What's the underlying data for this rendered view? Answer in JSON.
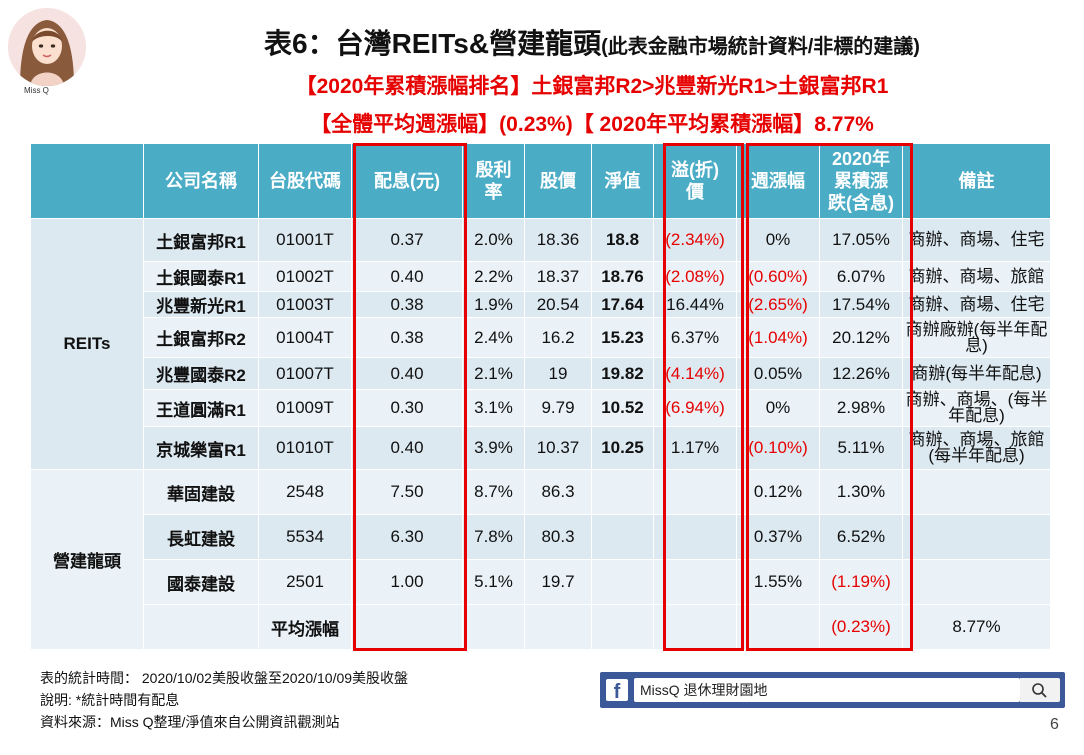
{
  "avatar_caption": "Miss Q",
  "title": {
    "main": "表6：台灣REITs&營建龍頭",
    "note": "(此表金融市場統計資料/非標的建議)"
  },
  "subtitle1": "【2020年累積漲幅排名】土銀富邦R2>兆豐新光R1>土銀富邦R1",
  "subtitle2": "【全體平均週漲幅】(0.23%)【 2020年平均累積漲幅】8.77%",
  "table": {
    "headers": [
      "",
      "公司名稱",
      "台股代碼",
      "配息(元)",
      "殷利率",
      "股價",
      "淨值",
      "溢(折)價",
      "週漲幅",
      "2020年累積漲跌(含息)",
      "備註"
    ],
    "header_lines": {
      "yield": [
        "殷利",
        "率"
      ],
      "premium": [
        "溢(折)",
        "價"
      ],
      "ytd": [
        "2020年",
        "累積漲",
        "跌(含息)"
      ]
    },
    "groups": {
      "reits": "REITs",
      "construction": "營建龍頭"
    },
    "rows": [
      {
        "name": "土銀富邦R1",
        "code": "01001T",
        "div": "0.37",
        "yield": "2.0%",
        "price": "18.36",
        "nav": "18.8",
        "prem": "(2.34%)",
        "prem_red": true,
        "week": "0%",
        "week_red": false,
        "ytd": "17.05%",
        "ytd_red": false,
        "note": "商辦、商場、住宅"
      },
      {
        "name": "土銀國泰R1",
        "code": "01002T",
        "div": "0.40",
        "yield": "2.2%",
        "price": "18.37",
        "nav": "18.76",
        "prem": "(2.08%)",
        "prem_red": true,
        "week": "(0.60%)",
        "week_red": true,
        "ytd": "6.07%",
        "ytd_red": false,
        "note": "商辦、商場、旅館"
      },
      {
        "name": "兆豐新光R1",
        "code": "01003T",
        "div": "0.38",
        "yield": "1.9%",
        "price": "20.54",
        "nav": "17.64",
        "prem": "16.44%",
        "prem_red": false,
        "week": "(2.65%)",
        "week_red": true,
        "ytd": "17.54%",
        "ytd_red": false,
        "note": "商辦、商場、住宅"
      },
      {
        "name": "土銀富邦R2",
        "code": "01004T",
        "div": "0.38",
        "yield": "2.4%",
        "price": "16.2",
        "nav": "15.23",
        "prem": "6.37%",
        "prem_red": false,
        "week": "(1.04%)",
        "week_red": true,
        "ytd": "20.12%",
        "ytd_red": false,
        "note": "商辦廠辦(每半年配息)"
      },
      {
        "name": "兆豐國泰R2",
        "code": "01007T",
        "div": "0.40",
        "yield": "2.1%",
        "price": "19",
        "nav": "19.82",
        "prem": "(4.14%)",
        "prem_red": true,
        "week": "0.05%",
        "week_red": false,
        "ytd": "12.26%",
        "ytd_red": false,
        "note": "商辦(每半年配息)"
      },
      {
        "name": "王道圓滿R1",
        "code": "01009T",
        "div": "0.30",
        "yield": "3.1%",
        "price": "9.79",
        "nav": "10.52",
        "prem": "(6.94%)",
        "prem_red": true,
        "week": "0%",
        "week_red": false,
        "ytd": "2.98%",
        "ytd_red": false,
        "note": "商辦、商場、(每半年配息)"
      },
      {
        "name": "京城樂富R1",
        "code": "01010T",
        "div": "0.40",
        "yield": "3.9%",
        "price": "10.37",
        "nav": "10.25",
        "prem": "1.17%",
        "prem_red": false,
        "week": "(0.10%)",
        "week_red": true,
        "ytd": "5.11%",
        "ytd_red": false,
        "note": "商辦、商場、旅館(每半年配息)"
      },
      {
        "name": "華固建設",
        "code": "2548",
        "div": "7.50",
        "yield": "8.7%",
        "price": "86.3",
        "nav": "",
        "prem": "",
        "prem_red": false,
        "week": "0.12%",
        "week_red": false,
        "ytd": "1.30%",
        "ytd_red": false,
        "note": ""
      },
      {
        "name": "長虹建設",
        "code": "5534",
        "div": "6.30",
        "yield": "7.8%",
        "price": "80.3",
        "nav": "",
        "prem": "",
        "prem_red": false,
        "week": "0.37%",
        "week_red": false,
        "ytd": "6.52%",
        "ytd_red": false,
        "note": ""
      },
      {
        "name": "國泰建設",
        "code": "2501",
        "div": "1.00",
        "yield": "5.1%",
        "price": "19.7",
        "nav": "",
        "prem": "",
        "prem_red": false,
        "week": "1.55%",
        "week_red": false,
        "ytd": "(1.19%)",
        "ytd_red": true,
        "note": ""
      }
    ],
    "average": {
      "label": "平均漲幅",
      "week": "(0.23%)",
      "ytd": "8.77%"
    }
  },
  "footer": {
    "line1": "表的統計時間： 2020/10/02美股收盤至2020/10/09美股收盤",
    "line2": "說明: *統計時間有配息",
    "line3": "資料來源：Miss Q整理/淨值來自公開資訊觀測站"
  },
  "facebook": {
    "logo": "f",
    "text": "MissQ 退休理財園地"
  },
  "page_number": "6",
  "colors": {
    "header": "#4bacc6",
    "cell": "#dce9f1",
    "highlight": "#e60000",
    "fb": "#3b5998"
  }
}
